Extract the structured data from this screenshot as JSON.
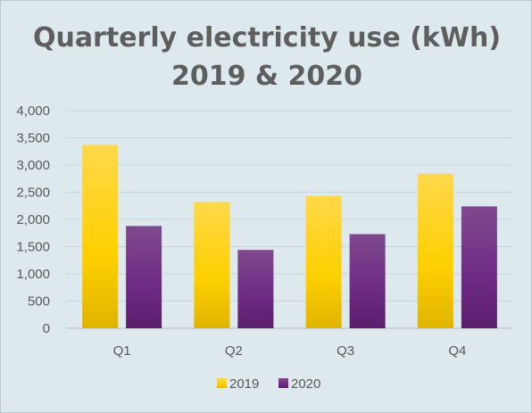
{
  "chart_data": {
    "type": "bar",
    "title_line1": "Quarterly electricity use (kWh)",
    "title_line2": "2019 & 2020",
    "xlabel": "",
    "ylabel": "",
    "categories": [
      "Q1",
      "Q2",
      "Q3",
      "Q4"
    ],
    "series": [
      {
        "name": "2019",
        "values": [
          3370,
          2320,
          2430,
          2840
        ],
        "color": "#f7c600"
      },
      {
        "name": "2020",
        "values": [
          1880,
          1440,
          1730,
          2240
        ],
        "color": "#6b2a80"
      }
    ],
    "ylim": [
      0,
      4000
    ],
    "yticks": [
      "0",
      "500",
      "1,000",
      "1,500",
      "2,000",
      "2,500",
      "3,000",
      "3,500",
      "4,000"
    ],
    "ytick_values": [
      0,
      500,
      1000,
      1500,
      2000,
      2500,
      3000,
      3500,
      4000
    ],
    "grid": true,
    "legend_position": "bottom"
  }
}
